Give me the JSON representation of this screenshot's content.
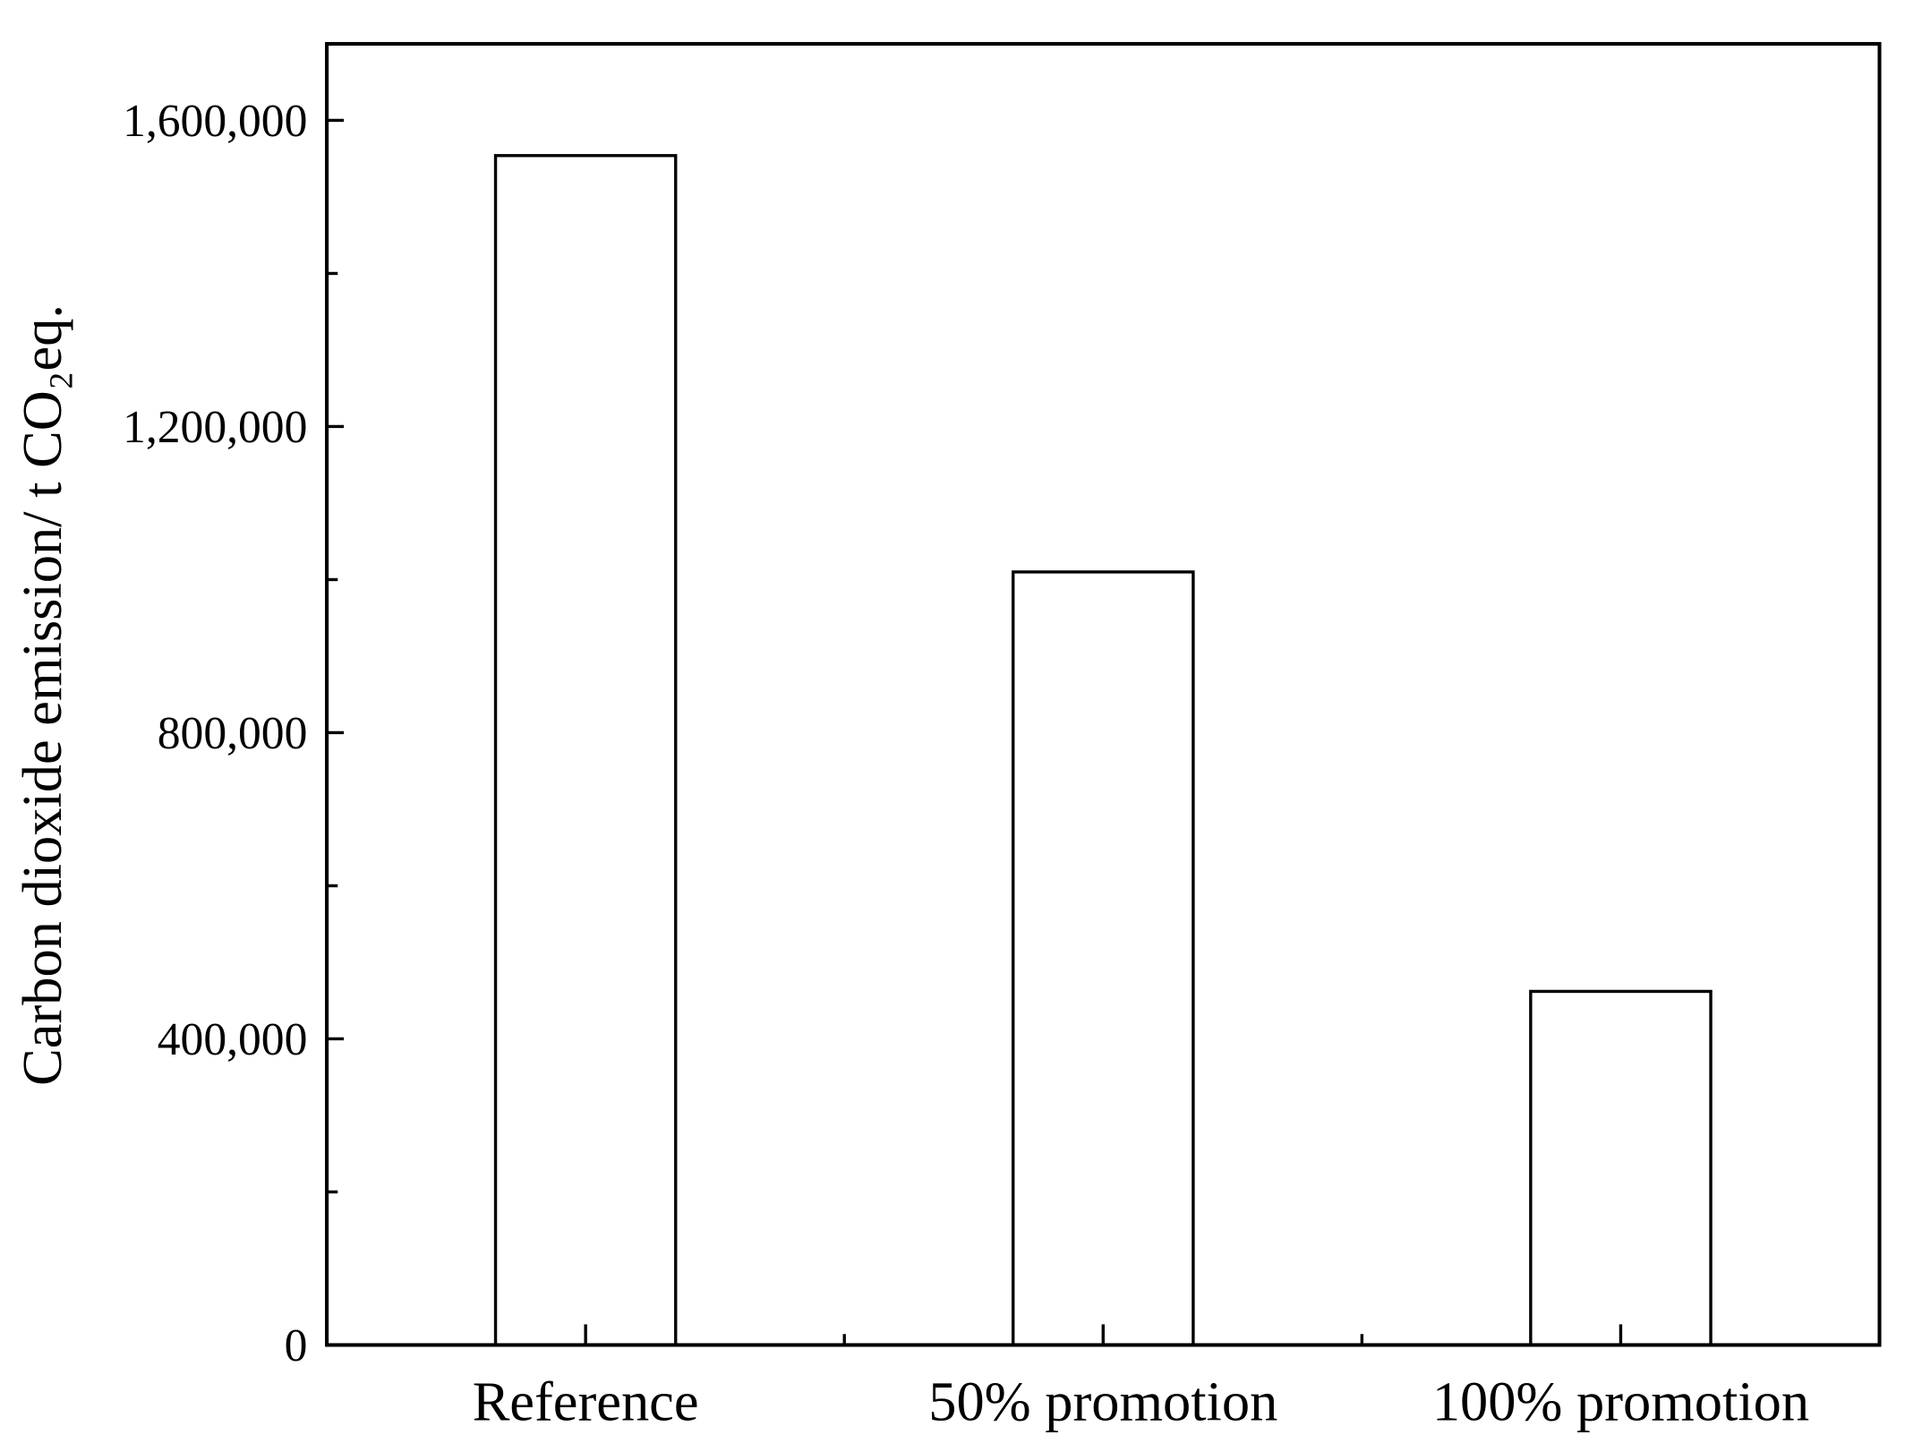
{
  "chart_data": {
    "type": "bar",
    "y_label": "Carbon dioxide emission/ t CO₂eq.",
    "categories": [
      "Reference",
      "50% promotion",
      "100% promotion"
    ],
    "values": [
      1554000,
      1010000,
      462000
    ],
    "color": "#ffffff",
    "ylim": [
      0,
      1700000
    ],
    "yticks": [
      {
        "value": 0,
        "label": "0"
      },
      {
        "value": 400000,
        "label": "400,000"
      },
      {
        "value": 800000,
        "label": "800,000"
      },
      {
        "value": 1200000,
        "label": "1,200,000"
      },
      {
        "value": 1600000,
        "label": "1,600,000"
      }
    ],
    "yminor_ticks": [
      200000,
      600000,
      1000000,
      1400000
    ],
    "grid": false
  }
}
